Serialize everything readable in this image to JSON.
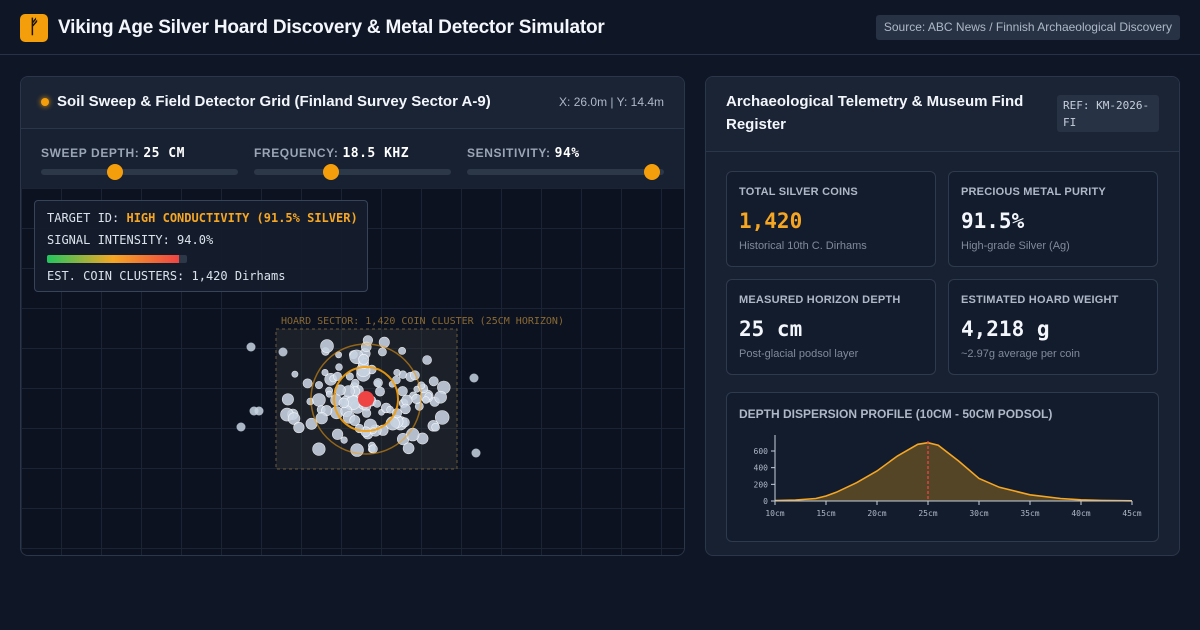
{
  "header": {
    "logo_glyph": "ᚠ",
    "title": "Viking Age Silver Hoard Discovery & Metal Detector Simulator",
    "source": "Source: ABC News / Finnish Archaeological Discovery"
  },
  "detector": {
    "title": "Soil Sweep & Field Detector Grid (Finland Survey Sector A-9)",
    "coords": "X: 26.0m | Y: 14.4m",
    "controls": [
      {
        "label": "SWEEP DEPTH:",
        "value": "25 CM",
        "level": 0.375
      },
      {
        "label": "FREQUENCY:",
        "value": "18.5 KHZ",
        "level": 0.39
      },
      {
        "label": "SENSITIVITY:",
        "value": "94%",
        "level": 0.94
      }
    ],
    "target": {
      "id_label": "TARGET ID:",
      "id_value": "HIGH CONDUCTIVITY (91.5% SILVER)",
      "signal_label": "SIGNAL INTENSITY: 94.0%",
      "signal_level": 0.94,
      "clusters_label": "EST. COIN CLUSTERS: 1,420 Dirhams"
    },
    "hoard_label": "HOARD SECTOR: 1,420 COIN CLUSTER (25CM HORIZON)",
    "colors": {
      "accent": "#f59e0b",
      "target": "#ef4444",
      "coin": "#c8d3e2"
    }
  },
  "register": {
    "title": "Archaeological Telemetry & Museum Find Register",
    "ref": "REF: KM-2026-FI",
    "stats": [
      {
        "label": "TOTAL SILVER COINS",
        "value": "1,420",
        "sub": "Historical 10th C. Dirhams",
        "accent": true
      },
      {
        "label": "PRECIOUS METAL PURITY",
        "value": "91.5%",
        "sub": "High-grade Silver (Ag)",
        "accent": false
      },
      {
        "label": "MEASURED HORIZON DEPTH",
        "value": "25 cm",
        "sub": "Post-glacial podsol layer",
        "accent": false
      },
      {
        "label": "ESTIMATED HOARD WEIGHT",
        "value": "4,218 g",
        "sub": "~2.97g average per coin",
        "accent": false
      }
    ]
  },
  "chart_data": {
    "type": "area",
    "title": "DEPTH DISPERSION PROFILE (10CM - 50CM PODSOL)",
    "x_ticks": [
      "10cm",
      "15cm",
      "20cm",
      "25cm",
      "30cm",
      "35cm",
      "40cm",
      "45cm"
    ],
    "y_ticks": [
      "0",
      "200",
      "400",
      "600"
    ],
    "x": [
      10,
      12,
      14,
      15,
      16,
      18,
      20,
      22,
      24,
      25,
      26,
      28,
      30,
      32,
      35,
      38,
      40,
      42,
      45
    ],
    "y": [
      5,
      12,
      30,
      60,
      105,
      220,
      360,
      540,
      680,
      700,
      670,
      480,
      270,
      165,
      75,
      30,
      15,
      7,
      3
    ],
    "xlim": [
      10,
      45
    ],
    "ylim": [
      0,
      720
    ],
    "marker_x": 25,
    "colors": {
      "line": "#f5a623",
      "fill": "#6b5326",
      "marker": "#ef4444",
      "axis": "#c6cfdb"
    }
  }
}
